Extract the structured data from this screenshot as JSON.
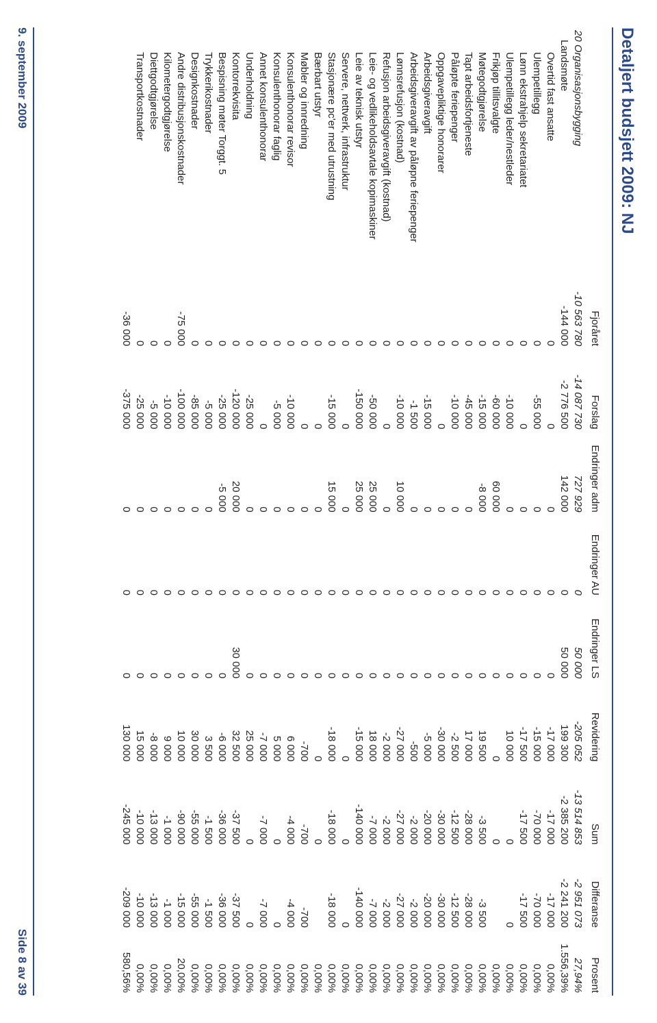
{
  "title": "Detaljert budsjett 2009:  NJ",
  "colors": {
    "accent": "#2b4a8b",
    "text": "#222222",
    "background": "#ffffff"
  },
  "typography": {
    "title_fontsize_pt": 18,
    "body_fontsize_pt": 11,
    "footer_fontsize_pt": 13,
    "font_family": "Verdana"
  },
  "columns": [
    "",
    "Fjoråret",
    "Forslag",
    "Endringer adm",
    "Endringer AU",
    "Endringer LS",
    "Revidering",
    "Sum",
    "Differanse",
    "Prosent"
  ],
  "group_row": {
    "label": "20 Organisasjonsbygging",
    "values": [
      "-10 563 780",
      "-14 087 730",
      "727 929",
      "0",
      "50 000",
      "-205 052",
      "-13 514 853",
      "-2 951 073",
      "27,94%"
    ]
  },
  "sub_row": {
    "label": "Landsmøte",
    "values": [
      "-144 000",
      "-2 776 500",
      "142 000",
      "0",
      "50 000",
      "199 300",
      "-2 385 200",
      "-2 241 200",
      "1.556,39%"
    ]
  },
  "rows": [
    {
      "label": "Overtid fast ansatte",
      "v": [
        "0",
        "0",
        "0",
        "0",
        "0",
        "-17 000",
        "-17 000",
        "-17 000",
        "0,00%"
      ]
    },
    {
      "label": "Ulempetillegg",
      "v": [
        "0",
        "-55 000",
        "0",
        "0",
        "0",
        "-15 000",
        "-70 000",
        "-70 000",
        "0,00%"
      ]
    },
    {
      "label": "Lønn ekstrahjelp sekretariatet",
      "v": [
        "0",
        "0",
        "0",
        "0",
        "0",
        "-17 500",
        "-17 500",
        "-17 500",
        "0,00%"
      ]
    },
    {
      "label": "Ulempetillegg leder/nestleder",
      "v": [
        "0",
        "-10 000",
        "0",
        "0",
        "0",
        "10 000",
        "0",
        "0",
        "0,00%"
      ]
    },
    {
      "label": "Frikjøp tillitsvalgte",
      "v": [
        "0",
        "-60 000",
        "60 000",
        "0",
        "0",
        "0",
        "0",
        "",
        "0,00%"
      ]
    },
    {
      "label": "Møtegodtgjørelse",
      "v": [
        "0",
        "-15 000",
        "-8 000",
        "0",
        "0",
        "19 500",
        "-3 500",
        "-3 500",
        "0,00%"
      ]
    },
    {
      "label": "Tapt arbeidsfortjeneste",
      "v": [
        "0",
        "-45 000",
        "0",
        "0",
        "0",
        "17 000",
        "-28 000",
        "-28 000",
        "0,00%"
      ]
    },
    {
      "label": "Påløpte feriepenger",
      "v": [
        "0",
        "-10 000",
        "0",
        "0",
        "0",
        "-2 500",
        "-12 500",
        "-12 500",
        "0,00%"
      ]
    },
    {
      "label": "Oppgavepliktige honorarer",
      "v": [
        "0",
        "0",
        "0",
        "0",
        "0",
        "-30 000",
        "-30 000",
        "-30 000",
        "0,00%"
      ]
    },
    {
      "label": "Arbeidsgiveravgift",
      "v": [
        "0",
        "-15 000",
        "0",
        "0",
        "0",
        "-5 000",
        "-20 000",
        "-20 000",
        "0,00%"
      ]
    },
    {
      "label": "Arbeidsgiveravgift av påløpne feriepenger",
      "v": [
        "0",
        "-1 500",
        "0",
        "0",
        "0",
        "-500",
        "-2 000",
        "-2 000",
        "0,00%"
      ]
    },
    {
      "label": "Lønnsrefusjon (kostnad)",
      "v": [
        "0",
        "-10 000",
        "10 000",
        "0",
        "0",
        "-27 000",
        "-27 000",
        "-27 000",
        "0,00%"
      ]
    },
    {
      "label": "Refusjon arbeidsgiveravgift (kostnad)",
      "v": [
        "0",
        "0",
        "0",
        "0",
        "0",
        "-2 000",
        "-2 000",
        "-2 000",
        "0,00%"
      ]
    },
    {
      "label": "Leie- og vedlikeholdsavtale kopimaskiner",
      "v": [
        "0",
        "-50 000",
        "25 000",
        "0",
        "0",
        "18 000",
        "-7 000",
        "-7 000",
        "0,00%"
      ]
    },
    {
      "label": "Leie av teknisk utstyr",
      "v": [
        "0",
        "-150 000",
        "25 000",
        "0",
        "0",
        "-15 000",
        "-140 000",
        "-140 000",
        "0,00%"
      ]
    },
    {
      "label": "Servere, nettverk, infrastruktur",
      "v": [
        "0",
        "0",
        "0",
        "0",
        "0",
        "0",
        "0",
        "0",
        "0,00%"
      ]
    },
    {
      "label": "Stasjonære pc'er med utrustning",
      "v": [
        "0",
        "-15 000",
        "15 000",
        "0",
        "0",
        "-18 000",
        "-18 000",
        "-18 000",
        "0,00%"
      ]
    },
    {
      "label": "Bærbart utstyr",
      "v": [
        "0",
        "0",
        "0",
        "0",
        "0",
        "0",
        "0",
        "",
        "0,00%"
      ]
    },
    {
      "label": "Møbler og innredning",
      "v": [
        "0",
        "0",
        "0",
        "0",
        "0",
        "-700",
        "-700",
        "-700",
        "0,00%"
      ]
    },
    {
      "label": "Konsulenthonorar revisor",
      "v": [
        "0",
        "-10 000",
        "0",
        "0",
        "0",
        "6 000",
        "-4 000",
        "-4 000",
        "0,00%"
      ]
    },
    {
      "label": "Konsulenthonorar faglig",
      "v": [
        "0",
        "-5 000",
        "0",
        "0",
        "0",
        "5 000",
        "0",
        "0",
        "0,00%"
      ]
    },
    {
      "label": "Annet konsulenthonorar",
      "v": [
        "0",
        "0",
        "0",
        "0",
        "0",
        "-7 000",
        "-7 000",
        "-7 000",
        "0,00%"
      ]
    },
    {
      "label": "Underholdning",
      "v": [
        "0",
        "-25 000",
        "0",
        "0",
        "0",
        "25 000",
        "0",
        "0",
        "0,00%"
      ]
    },
    {
      "label": "Kontorrekvisita",
      "v": [
        "0",
        "-120 000",
        "20 000",
        "0",
        "30 000",
        "32 500",
        "-37 500",
        "-37 500",
        "0,00%"
      ]
    },
    {
      "label": "Bespisning møter Torggt. 5",
      "v": [
        "0",
        "-25 000",
        "-5 000",
        "0",
        "0",
        "-6 000",
        "-36 000",
        "-36 000",
        "0,00%"
      ]
    },
    {
      "label": "Trykkerikostnader",
      "v": [
        "0",
        "-5 000",
        "0",
        "0",
        "0",
        "3 500",
        "-1 500",
        "-1 500",
        "0,00%"
      ]
    },
    {
      "label": "Designkostnader",
      "v": [
        "0",
        "-85 000",
        "0",
        "0",
        "0",
        "30 000",
        "-55 000",
        "-55 000",
        "0,00%"
      ]
    },
    {
      "label": "Andre distribusjonskostnader",
      "v": [
        "-75 000",
        "-100 000",
        "0",
        "0",
        "0",
        "10 000",
        "-90 000",
        "-15 000",
        "20,00%"
      ]
    },
    {
      "label": "Kilometergodtgjørelse",
      "v": [
        "0",
        "-10 000",
        "0",
        "0",
        "0",
        "9 000",
        "-1 000",
        "-1 000",
        "0,00%"
      ]
    },
    {
      "label": "Diettgodtgjørelse",
      "v": [
        "0",
        "-5 000",
        "0",
        "0",
        "0",
        "-8 000",
        "-13 000",
        "-13 000",
        "0,00%"
      ]
    },
    {
      "label": "Transportkostnader",
      "v": [
        "0",
        "-25 000",
        "0",
        "0",
        "0",
        "15 000",
        "-10 000",
        "-10 000",
        "0,00%"
      ]
    },
    {
      "label": "",
      "v": [
        "-36 000",
        "-375 000",
        "0",
        "0",
        "0",
        "130 000",
        "-245 000",
        "-209 000",
        "580,56%"
      ],
      "extra": "last"
    }
  ],
  "footer": {
    "date": "9. september 2009",
    "page": "Side 8 av 39"
  }
}
